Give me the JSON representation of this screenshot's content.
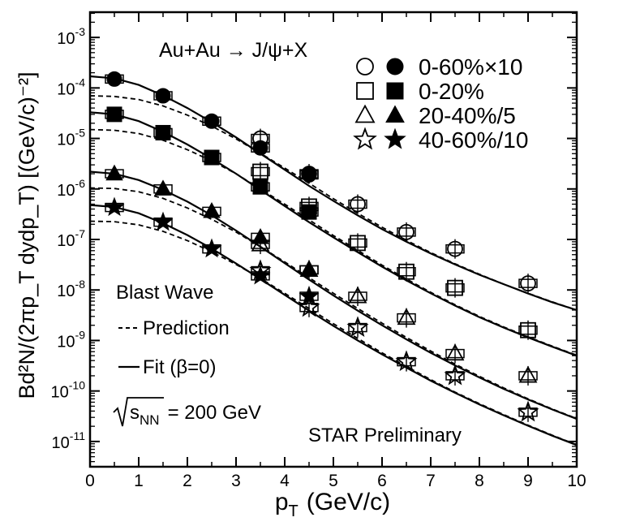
{
  "chart_data": {
    "type": "scatter",
    "title": "",
    "xlabel_main": "p",
    "xlabel_sub": "T",
    "xlabel_unit": "(GeV/c)",
    "ylabel": "Bd²N/(2πp_T dydp_T) [(GeV/c)⁻²]",
    "yscale": "log",
    "xlim": [
      0,
      10
    ],
    "ylim_exp": [
      -11.5,
      -2.5
    ],
    "xticks": [
      "0",
      "1",
      "2",
      "3",
      "4",
      "5",
      "6",
      "7",
      "8",
      "9",
      "10"
    ],
    "yticks": [
      {
        "exp": -3,
        "label": "10",
        "sup": "-3"
      },
      {
        "exp": -4,
        "label": "10",
        "sup": "-4"
      },
      {
        "exp": -5,
        "label": "10",
        "sup": "-5"
      },
      {
        "exp": -6,
        "label": "10",
        "sup": "-6"
      },
      {
        "exp": -7,
        "label": "10",
        "sup": "-7"
      },
      {
        "exp": -8,
        "label": "10",
        "sup": "-8"
      },
      {
        "exp": -9,
        "label": "10",
        "sup": "-9"
      },
      {
        "exp": -10,
        "label": "10",
        "sup": "-10"
      },
      {
        "exp": -11,
        "label": "10",
        "sup": "-11"
      }
    ],
    "annotations": {
      "reaction": "Au+Au → J/ψ+X",
      "blast_wave": "Blast Wave",
      "prediction": "Prediction",
      "fit": "Fit (β=0)",
      "energy_main": "s",
      "energy_sub": "NN",
      "energy_rest": "= 200 GeV",
      "preliminary": "STAR Preliminary"
    },
    "series": [
      {
        "name": "0-60%×10",
        "marker": "circle",
        "filled": {
          "x": [
            0.5,
            1.5,
            2.5,
            3.5,
            4.5
          ],
          "y": [
            0.00015,
            7e-05,
            2.2e-05,
            6.5e-06,
            1.9e-06
          ]
        },
        "open": {
          "x": [
            3.5,
            4.5,
            5.5,
            6.5,
            7.5,
            9.0
          ],
          "y": [
            1e-05,
            2e-06,
            5e-07,
            1.4e-07,
            6.5e-08,
            1.35e-08
          ]
        }
      },
      {
        "name": "0-20%",
        "marker": "square",
        "filled": {
          "x": [
            0.5,
            1.5,
            2.5,
            3.5,
            4.5
          ],
          "y": [
            3e-05,
            1.3e-05,
            4.2e-06,
            1.1e-06,
            3.5e-07
          ]
        },
        "open": {
          "x": [
            3.5,
            4.5,
            5.5,
            6.5,
            7.5,
            9.0
          ],
          "y": [
            2.2e-06,
            4.5e-07,
            8.5e-08,
            2.3e-08,
            1.1e-08,
            1.6e-09
          ]
        }
      },
      {
        "name": "20-40%/5",
        "marker": "triangle",
        "filled": {
          "x": [
            0.5,
            1.5,
            2.5,
            3.5,
            4.5
          ],
          "y": [
            2e-06,
            1e-06,
            3.6e-07,
            1.1e-07,
            2.5e-08
          ]
        },
        "open": {
          "x": [
            3.5,
            4.5,
            5.5,
            6.5,
            7.5,
            9.0
          ],
          "y": [
            8e-08,
            2.5e-08,
            7.5e-09,
            2.8e-09,
            5.5e-10,
            2e-10
          ]
        }
      },
      {
        "name": "40-60%/10",
        "marker": "star",
        "filled": {
          "x": [
            0.5,
            1.5,
            2.5,
            3.5,
            4.5
          ],
          "y": [
            4.3e-07,
            2.2e-07,
            6.5e-08,
            1.9e-08,
            7.5e-09
          ]
        },
        "open": {
          "x": [
            3.5,
            4.5,
            5.5,
            6.5,
            7.5,
            9.0
          ],
          "y": [
            2.4e-08,
            4.5e-09,
            1.8e-09,
            3.8e-10,
            2e-10,
            3.8e-11
          ]
        }
      }
    ],
    "fit_curves": [
      {
        "x": [
          0,
          0.5,
          1,
          1.5,
          2,
          2.5,
          3,
          3.5,
          4,
          4.5,
          5,
          5.5,
          6,
          6.5,
          7,
          7.5,
          8,
          8.5,
          9,
          9.5,
          10
        ],
        "y": [
          0.00017,
          0.000155,
          0.000115,
          7.1e-05,
          4e-05,
          2.1e-05,
          1.05e-05,
          5e-06,
          2.4e-06,
          1.15e-06,
          5.8e-07,
          3e-07,
          1.6e-07,
          9e-08,
          5.3e-08,
          3.2e-08,
          2e-08,
          1.3e-08,
          8.5e-09,
          5.7e-09,
          4e-09
        ]
      },
      {
        "x": [
          0,
          0.5,
          1,
          1.5,
          2,
          2.5,
          3,
          3.5,
          4,
          4.5,
          5,
          5.5,
          6,
          6.5,
          7,
          7.5,
          8,
          8.5,
          9,
          9.5,
          10
        ],
        "y": [
          3.3e-05,
          3e-05,
          2.2e-05,
          1.35e-05,
          7.6e-06,
          4e-06,
          2e-06,
          9.6e-07,
          4.6e-07,
          2.2e-07,
          1.1e-07,
          5.6e-08,
          2.9e-08,
          1.55e-08,
          8.6e-09,
          4.9e-09,
          2.9e-09,
          1.8e-09,
          1.15e-09,
          7.5e-10,
          5e-10
        ]
      },
      {
        "x": [
          0,
          0.5,
          1,
          1.5,
          2,
          2.5,
          3,
          3.5,
          4,
          4.5,
          5,
          5.5,
          6,
          6.5,
          7,
          7.5,
          8,
          8.5,
          9,
          9.5,
          10
        ],
        "y": [
          2.2e-06,
          2e-06,
          1.5e-06,
          9.6e-07,
          5.6e-07,
          3e-07,
          1.5e-07,
          7.2e-08,
          3.4e-08,
          1.6e-08,
          7.8e-09,
          3.9e-09,
          2e-09,
          1.05e-09,
          5.7e-10,
          3.2e-10,
          1.85e-10,
          1.1e-10,
          6.8e-11,
          4.3e-11,
          2.8e-11
        ]
      },
      {
        "x": [
          0,
          0.5,
          1,
          1.5,
          2,
          2.5,
          3,
          3.5,
          4,
          4.5,
          5,
          5.5,
          6,
          6.5,
          7,
          7.5,
          8,
          8.5,
          9,
          9.5,
          10
        ],
        "y": [
          4.8e-07,
          4.4e-07,
          3.3e-07,
          2.1e-07,
          1.22e-07,
          6.6e-08,
          3.35e-08,
          1.65e-08,
          8e-09,
          3.9e-09,
          1.95e-09,
          1e-09,
          5.3e-10,
          2.9e-10,
          1.6e-10,
          9.2e-11,
          5.4e-11,
          3.3e-11,
          2.05e-11,
          1.3e-11,
          8.5e-12
        ]
      }
    ],
    "prediction_curves": [
      {
        "x": [
          0,
          0.5,
          1,
          1.5,
          2,
          2.5,
          3,
          3.5,
          4,
          4.5,
          5,
          5.5,
          6,
          6.5,
          7,
          7.5,
          8,
          8.5,
          9,
          9.5,
          10
        ],
        "y": [
          7e-05,
          6.8e-05,
          5.9e-05,
          4.4e-05,
          2.9e-05,
          1.75e-05,
          9.8e-06,
          5.1e-06,
          2.6e-06,
          1.3e-06,
          6.4e-07,
          3.3e-07,
          1.75e-07,
          9.6e-08,
          5.5e-08,
          3.3e-08,
          2.05e-08,
          1.3e-08,
          8.6e-09,
          5.8e-09,
          4e-09
        ]
      },
      {
        "x": [
          0,
          0.5,
          1,
          1.5,
          2,
          2.5,
          3,
          3.5,
          4,
          4.5,
          5,
          5.5,
          6,
          6.5,
          7,
          7.5,
          8,
          8.5,
          9,
          9.5,
          10
        ],
        "y": [
          1.5e-05,
          1.45e-05,
          1.25e-05,
          9.2e-06,
          6e-06,
          3.6e-06,
          2e-06,
          1e-06,
          5e-07,
          2.45e-07,
          1.2e-07,
          6.1e-08,
          3.1e-08,
          1.65e-08,
          9e-09,
          5.1e-09,
          3e-09,
          1.85e-09,
          1.18e-09,
          7.7e-10,
          5.1e-10
        ]
      },
      {
        "x": [
          0,
          0.5,
          1,
          1.5,
          2,
          2.5,
          3,
          3.5,
          4,
          4.5,
          5,
          5.5,
          6,
          6.5,
          7,
          7.5,
          8,
          8.5,
          9,
          9.5,
          10
        ],
        "y": [
          1.05e-06,
          1.02e-06,
          8.8e-07,
          6.5e-07,
          4.2e-07,
          2.5e-07,
          1.4e-07,
          7.2e-08,
          3.6e-08,
          1.75e-08,
          8.6e-09,
          4.3e-09,
          2.2e-09,
          1.15e-09,
          6.2e-10,
          3.4e-10,
          1.95e-10,
          1.15e-10,
          7e-11,
          4.4e-11,
          2.85e-11
        ]
      },
      {
        "x": [
          0,
          0.5,
          1,
          1.5,
          2,
          2.5,
          3,
          3.5,
          4,
          4.5,
          5,
          5.5,
          6,
          6.5,
          7,
          7.5,
          8,
          8.5,
          9,
          9.5,
          10
        ],
        "y": [
          2.3e-07,
          2.25e-07,
          1.95e-07,
          1.45e-07,
          9.5e-08,
          5.7e-08,
          3.2e-08,
          1.7e-08,
          8.6e-09,
          4.3e-09,
          2.15e-09,
          1.1e-09,
          5.7e-10,
          3.05e-10,
          1.68e-10,
          9.5e-11,
          5.6e-11,
          3.4e-11,
          2.1e-11,
          1.33e-11,
          8.6e-12
        ]
      }
    ]
  }
}
